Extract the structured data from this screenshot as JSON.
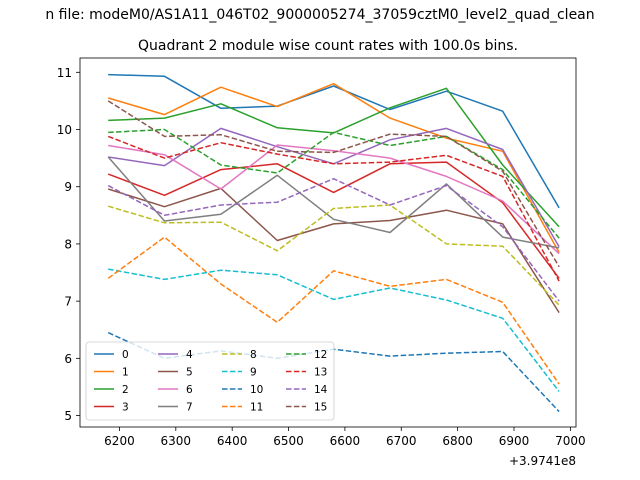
{
  "figure": {
    "suptitle": "n file: modeM0/AS1A11_046T02_9000005274_37059cztM0_level2_quad_clean",
    "offset_label": "+3.9741e8"
  },
  "chart_data": {
    "type": "line",
    "title": "Quadrant 2 module wise count rates with 100.0s bins.",
    "xlabel": "",
    "ylabel": "",
    "x_offset": 397410000,
    "xlim": [
      6130,
      7010
    ],
    "ylim": [
      4.8,
      11.25
    ],
    "xticks": [
      6200,
      6300,
      6400,
      6500,
      6600,
      6700,
      6800,
      6900,
      7000
    ],
    "yticks": [
      5,
      6,
      7,
      8,
      9,
      10,
      11
    ],
    "grid": false,
    "legend": {
      "placement": "lower-left",
      "columns": 4
    },
    "x": [
      6180,
      6280,
      6380,
      6480,
      6580,
      6680,
      6780,
      6880,
      6980
    ],
    "series": [
      {
        "name": "0",
        "color": "#1f77b4",
        "dash": "solid",
        "values": [
          10.96,
          10.93,
          10.37,
          10.41,
          10.76,
          10.35,
          10.67,
          10.32,
          8.63
        ]
      },
      {
        "name": "1",
        "color": "#ff7f0e",
        "dash": "solid",
        "values": [
          10.55,
          10.26,
          10.74,
          10.4,
          10.8,
          10.2,
          9.85,
          9.62,
          7.85
        ]
      },
      {
        "name": "2",
        "color": "#2ca02c",
        "dash": "solid",
        "values": [
          10.16,
          10.2,
          10.45,
          10.03,
          9.94,
          10.38,
          10.72,
          9.38,
          8.3
        ]
      },
      {
        "name": "3",
        "color": "#d62728",
        "dash": "solid",
        "values": [
          9.22,
          8.85,
          9.3,
          9.4,
          8.9,
          9.4,
          9.43,
          8.72,
          7.4
        ]
      },
      {
        "name": "4",
        "color": "#9467bd",
        "dash": "solid",
        "values": [
          9.52,
          9.37,
          10.02,
          9.7,
          9.4,
          9.82,
          10.02,
          9.65,
          7.95
        ]
      },
      {
        "name": "5",
        "color": "#8c564b",
        "dash": "solid",
        "values": [
          8.96,
          8.65,
          8.97,
          8.06,
          8.35,
          8.41,
          8.59,
          8.35,
          6.8
        ]
      },
      {
        "name": "6",
        "color": "#e377c2",
        "dash": "solid",
        "values": [
          9.72,
          9.56,
          8.96,
          9.73,
          9.63,
          9.5,
          9.18,
          8.75,
          7.83
        ]
      },
      {
        "name": "7",
        "color": "#7f7f7f",
        "dash": "solid",
        "values": [
          9.52,
          8.4,
          8.52,
          9.2,
          8.43,
          8.2,
          9.05,
          8.12,
          7.93
        ]
      },
      {
        "name": "8",
        "color": "#bcbd22",
        "dash": "dashed",
        "values": [
          8.66,
          8.37,
          8.38,
          7.88,
          8.62,
          8.68,
          8.0,
          7.96,
          6.93
        ]
      },
      {
        "name": "9",
        "color": "#17becf",
        "dash": "dashed",
        "values": [
          7.56,
          7.38,
          7.54,
          7.46,
          7.03,
          7.23,
          7.02,
          6.7,
          5.42
        ]
      },
      {
        "name": "10",
        "color": "#1f77b4",
        "dash": "dashed",
        "values": [
          6.45,
          6.0,
          6.13,
          6.0,
          6.16,
          6.04,
          6.09,
          6.12,
          5.07
        ]
      },
      {
        "name": "11",
        "color": "#ff7f0e",
        "dash": "dashed",
        "values": [
          7.4,
          8.12,
          7.3,
          6.63,
          7.53,
          7.26,
          7.38,
          6.98,
          5.55
        ]
      },
      {
        "name": "12",
        "color": "#2ca02c",
        "dash": "dashed",
        "values": [
          9.95,
          10.0,
          9.38,
          9.24,
          9.95,
          9.72,
          9.88,
          9.3,
          8.1
        ]
      },
      {
        "name": "13",
        "color": "#d62728",
        "dash": "dashed",
        "values": [
          9.88,
          9.5,
          9.77,
          9.57,
          9.4,
          9.43,
          9.55,
          9.18,
          7.35
        ]
      },
      {
        "name": "14",
        "color": "#9467bd",
        "dash": "dashed",
        "values": [
          9.02,
          8.5,
          8.68,
          8.73,
          9.14,
          8.68,
          9.02,
          8.3,
          7.0
        ]
      },
      {
        "name": "15",
        "color": "#8c564b",
        "dash": "dashed",
        "values": [
          10.5,
          9.88,
          9.91,
          9.62,
          9.6,
          9.92,
          9.88,
          9.27,
          7.6
        ]
      }
    ]
  }
}
